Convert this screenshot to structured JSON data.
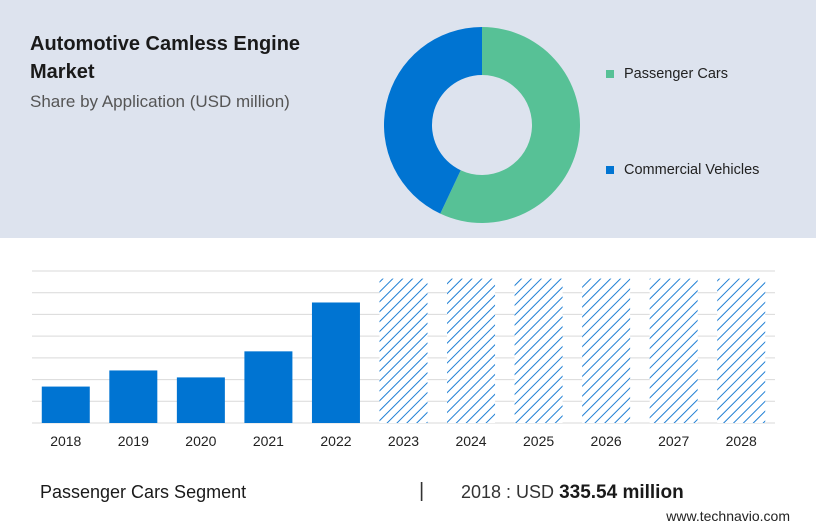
{
  "header": {
    "title": "Automotive Camless Engine Market",
    "subtitle": "Share by Application (USD million)"
  },
  "footer": {
    "segment": "Passenger Cars Segment",
    "separator": "|",
    "year_prefix": "2018 : USD ",
    "value_text": "335.54 million",
    "source": "www.technavio.com"
  },
  "colors": {
    "passenger_cars": "#57c196",
    "commercial_vehicles": "#0074d2",
    "forecast_hatch": "#1f7fd4",
    "grid": "#d9d9d9"
  },
  "chart_data": [
    {
      "type": "pie",
      "subtype": "donut",
      "title": "Share by Application (USD million)",
      "legend_position": "right",
      "slices": [
        {
          "name": "Passenger Cars",
          "value": 57
        },
        {
          "name": "Commercial Vehicles",
          "value": 43
        }
      ]
    },
    {
      "type": "bar",
      "categories": [
        "2018",
        "2019",
        "2020",
        "2021",
        "2022",
        "2023",
        "2024",
        "2025",
        "2026",
        "2027",
        "2028"
      ],
      "values": [
        335.54,
        484,
        420,
        660,
        1110,
        1330,
        1330,
        1330,
        1330,
        1330,
        1330
      ],
      "forecast_from": "2023",
      "ylim": [
        0,
        1400
      ],
      "grid": true,
      "ytick_step": 200,
      "show_ytick_labels": false
    }
  ]
}
